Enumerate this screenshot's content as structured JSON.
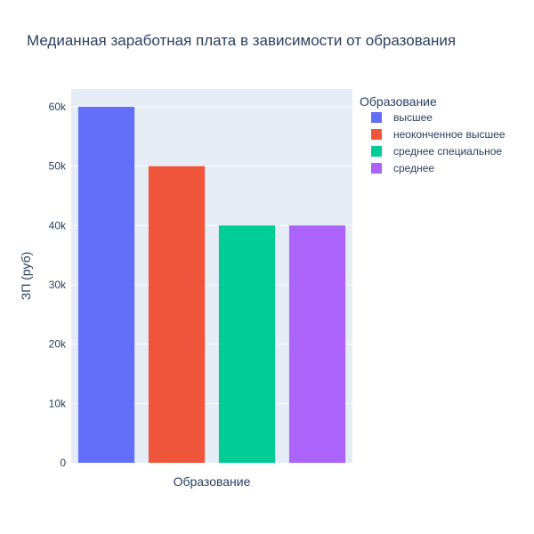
{
  "chart_data": {
    "type": "bar",
    "title": "Медианная заработная плата в зависимости от образования",
    "xlabel": "Образование",
    "ylabel": "ЗП (руб)",
    "ylim": [
      0,
      63000
    ],
    "y_ticks": [
      0,
      10000,
      20000,
      30000,
      40000,
      50000,
      60000
    ],
    "y_tick_labels": [
      "0",
      "10k",
      "20k",
      "30k",
      "40k",
      "50k",
      "60k"
    ],
    "grid": true,
    "legend": {
      "title": "Образование",
      "placement": "right"
    },
    "background": "#e5ecf6",
    "series": [
      {
        "name": "высшее",
        "value": 60000,
        "color": "#636efa"
      },
      {
        "name": "неоконченное высшее",
        "value": 50000,
        "color": "#ef553b"
      },
      {
        "name": "среднее специальное",
        "value": 40000,
        "color": "#00cc96"
      },
      {
        "name": "среднее",
        "value": 40000,
        "color": "#ab63fa"
      }
    ]
  }
}
